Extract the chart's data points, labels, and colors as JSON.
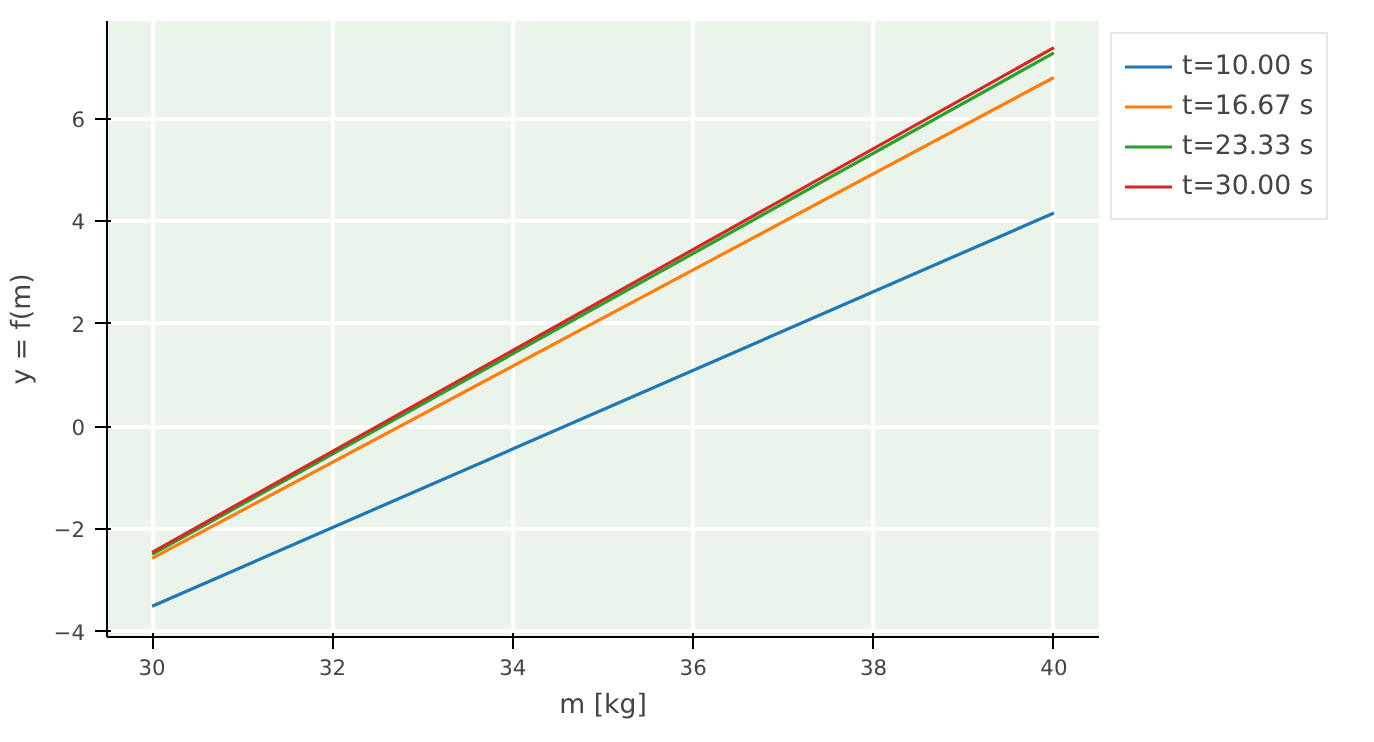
{
  "chart_data": {
    "type": "line",
    "xlabel": "m [kg]",
    "ylabel": "y = f(m)",
    "x": [
      30,
      40
    ],
    "series": [
      {
        "name": "t=10.00 s",
        "color": "#1f77b4",
        "values": [
          -3.5,
          4.16
        ]
      },
      {
        "name": "t=16.67 s",
        "color": "#ff7f0e",
        "values": [
          -2.57,
          6.8
        ]
      },
      {
        "name": "t=23.33 s",
        "color": "#2ca02c",
        "values": [
          -2.49,
          7.28
        ]
      },
      {
        "name": "t=30.00 s",
        "color": "#d62728",
        "values": [
          -2.45,
          7.38
        ]
      }
    ],
    "xlim": [
      29.5,
      40.5
    ],
    "ylim": [
      -4.1,
      7.9
    ],
    "xticks": [
      30,
      32,
      34,
      36,
      38,
      40
    ],
    "yticks": [
      -4,
      -2,
      0,
      2,
      4,
      6
    ],
    "grid": true,
    "legend": "top right",
    "marker": "none",
    "line_style": "solid"
  }
}
